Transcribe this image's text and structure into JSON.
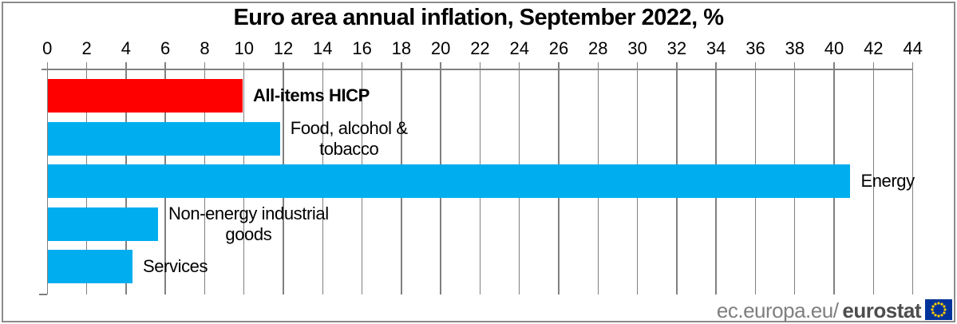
{
  "title": "Euro area annual inflation, September 2022, %",
  "chart_data": {
    "type": "bar",
    "orientation": "horizontal",
    "title": "Euro area annual inflation, September 2022, %",
    "categories": [
      "All-items HICP",
      "Food, alcohol &\ntobacco",
      "Energy",
      "Non-energy industrial\ngoods",
      "Services"
    ],
    "values": [
      9.9,
      11.8,
      40.8,
      5.6,
      4.3
    ],
    "bar_colors": [
      "#ff0000",
      "#00aeef",
      "#00aeef",
      "#00aeef",
      "#00aeef"
    ],
    "label_bold": [
      true,
      false,
      false,
      false,
      false
    ],
    "xlim": [
      0,
      44
    ],
    "x_ticks": [
      0,
      2,
      4,
      6,
      8,
      10,
      12,
      14,
      16,
      18,
      20,
      22,
      24,
      26,
      28,
      30,
      32,
      34,
      36,
      38,
      40,
      42,
      44
    ],
    "axis_position": "top",
    "grid": true,
    "legend": "none",
    "unit": "%"
  },
  "footer": {
    "site_text": "ec.europa.eu/",
    "brand_text": "eurostat"
  },
  "colors": {
    "bar_highlight": "#ff0000",
    "bar_default": "#00aeef",
    "gridline": "#808080",
    "footer_site": "#7f7f7f",
    "footer_brand": "#4d4d4d",
    "flag_blue": "#003399",
    "flag_stars": "#ffcc00"
  }
}
